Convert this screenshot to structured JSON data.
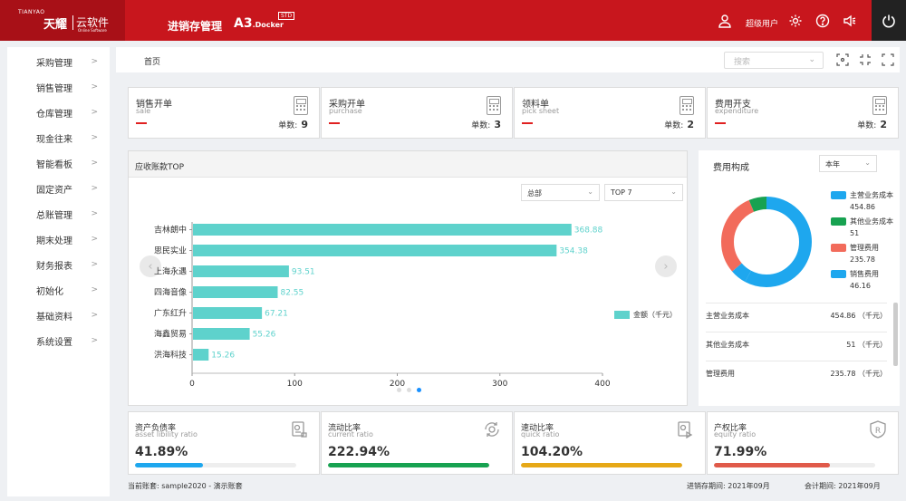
{
  "brand": {
    "en": "TIANYAO",
    "cn": "天耀",
    "cloud": "云软件",
    "cloud_en": "Online Software"
  },
  "header": {
    "app_title": "进销存管理",
    "product": "A3",
    "product_sub": ".Docker",
    "badge": "STD",
    "user": "超级用户"
  },
  "sidebar": {
    "items": [
      {
        "label": "采购管理"
      },
      {
        "label": "销售管理"
      },
      {
        "label": "仓库管理"
      },
      {
        "label": "现金往来"
      },
      {
        "label": "智能看板"
      },
      {
        "label": "固定资产"
      },
      {
        "label": "总账管理"
      },
      {
        "label": "期末处理"
      },
      {
        "label": "财务报表"
      },
      {
        "label": "初始化"
      },
      {
        "label": "基础资料"
      },
      {
        "label": "系统设置"
      }
    ]
  },
  "breadcrumb": {
    "home": "首页"
  },
  "search": {
    "placeholder": "搜索"
  },
  "stats": [
    {
      "title": "销售开单",
      "sub": "sale",
      "count_label": "单数:",
      "count": "9"
    },
    {
      "title": "采购开单",
      "sub": "purchase",
      "count_label": "单数:",
      "count": "3"
    },
    {
      "title": "领料单",
      "sub": "pick sheet",
      "count_label": "单数:",
      "count": "2"
    },
    {
      "title": "费用开支",
      "sub": "expenditure",
      "count_label": "单数:",
      "count": "2"
    }
  ],
  "receivables": {
    "title": "应收账款TOP",
    "filter1": "总部",
    "filter2": "TOP 7",
    "chart_data": {
      "type": "bar",
      "orientation": "horizontal",
      "categories": [
        "吉林朗中",
        "思民实业",
        "上海永遇",
        "四海音像",
        "广东红升",
        "海鑫贸易",
        "洪海科技"
      ],
      "series": [
        {
          "name": "金额（千元）",
          "values": [
            368.88,
            354.38,
            93.51,
            82.55,
            67.21,
            55.26,
            15.26
          ],
          "color": "#5ed2cc"
        }
      ],
      "value_labels": [
        "368.88",
        "354.38",
        "93.51",
        "82.55",
        "67.21",
        "55.26",
        "15.26"
      ],
      "xlim": [
        0,
        400
      ],
      "x_ticks": [
        0,
        100,
        200,
        300,
        400
      ],
      "x_tick_labels": [
        "0",
        "100",
        "200",
        "300",
        "400"
      ],
      "legend_position": "right"
    }
  },
  "costs": {
    "title": "费用构成",
    "period": "本年",
    "chart_data": {
      "type": "pie",
      "donut": true,
      "series": [
        {
          "name": "主营业务成本",
          "value": 454.86,
          "label": "454.86",
          "color": "#1ea7ee"
        },
        {
          "name": "其他业务成本",
          "value": 51,
          "label": "51",
          "color": "#17a251"
        },
        {
          "name": "管理费用",
          "value": 235.78,
          "label": "235.78",
          "color": "#f26b5b"
        },
        {
          "name": "销售费用",
          "value": 46.16,
          "label": "46.16",
          "color": "#1ea7ee"
        }
      ],
      "legend_position": "right"
    },
    "rows": [
      {
        "name": "主营业务成本",
        "value": "454.86 （千元）"
      },
      {
        "name": "其他业务成本",
        "value": "51 （千元）"
      },
      {
        "name": "管理费用",
        "value": "235.78 （千元）"
      }
    ]
  },
  "ratios": [
    {
      "title": "资产负债率",
      "sub": "asset libility ratio",
      "value": "41.89%",
      "fraction": 0.4189,
      "color": "#1ea7ee",
      "icon": "report-icon"
    },
    {
      "title": "流动比率",
      "sub": "current ratio",
      "value": "222.94%",
      "fraction": 1.0,
      "color": "#17a251",
      "icon": "cycle-coin-icon"
    },
    {
      "title": "速动比率",
      "sub": "quick ratio",
      "value": "104.20%",
      "fraction": 1.0,
      "color": "#e6a817",
      "icon": "document-icon"
    },
    {
      "title": "产权比率",
      "sub": "equity ratio",
      "value": "71.99%",
      "fraction": 0.7199,
      "color": "#e05a4a",
      "icon": "registered-icon"
    }
  ],
  "footer": {
    "account": "当前账套: sample2020 - 演示账套",
    "inventory_period": "进销存期间: 2021年09月",
    "accounting_period": "会计期间: 2021年09月"
  }
}
